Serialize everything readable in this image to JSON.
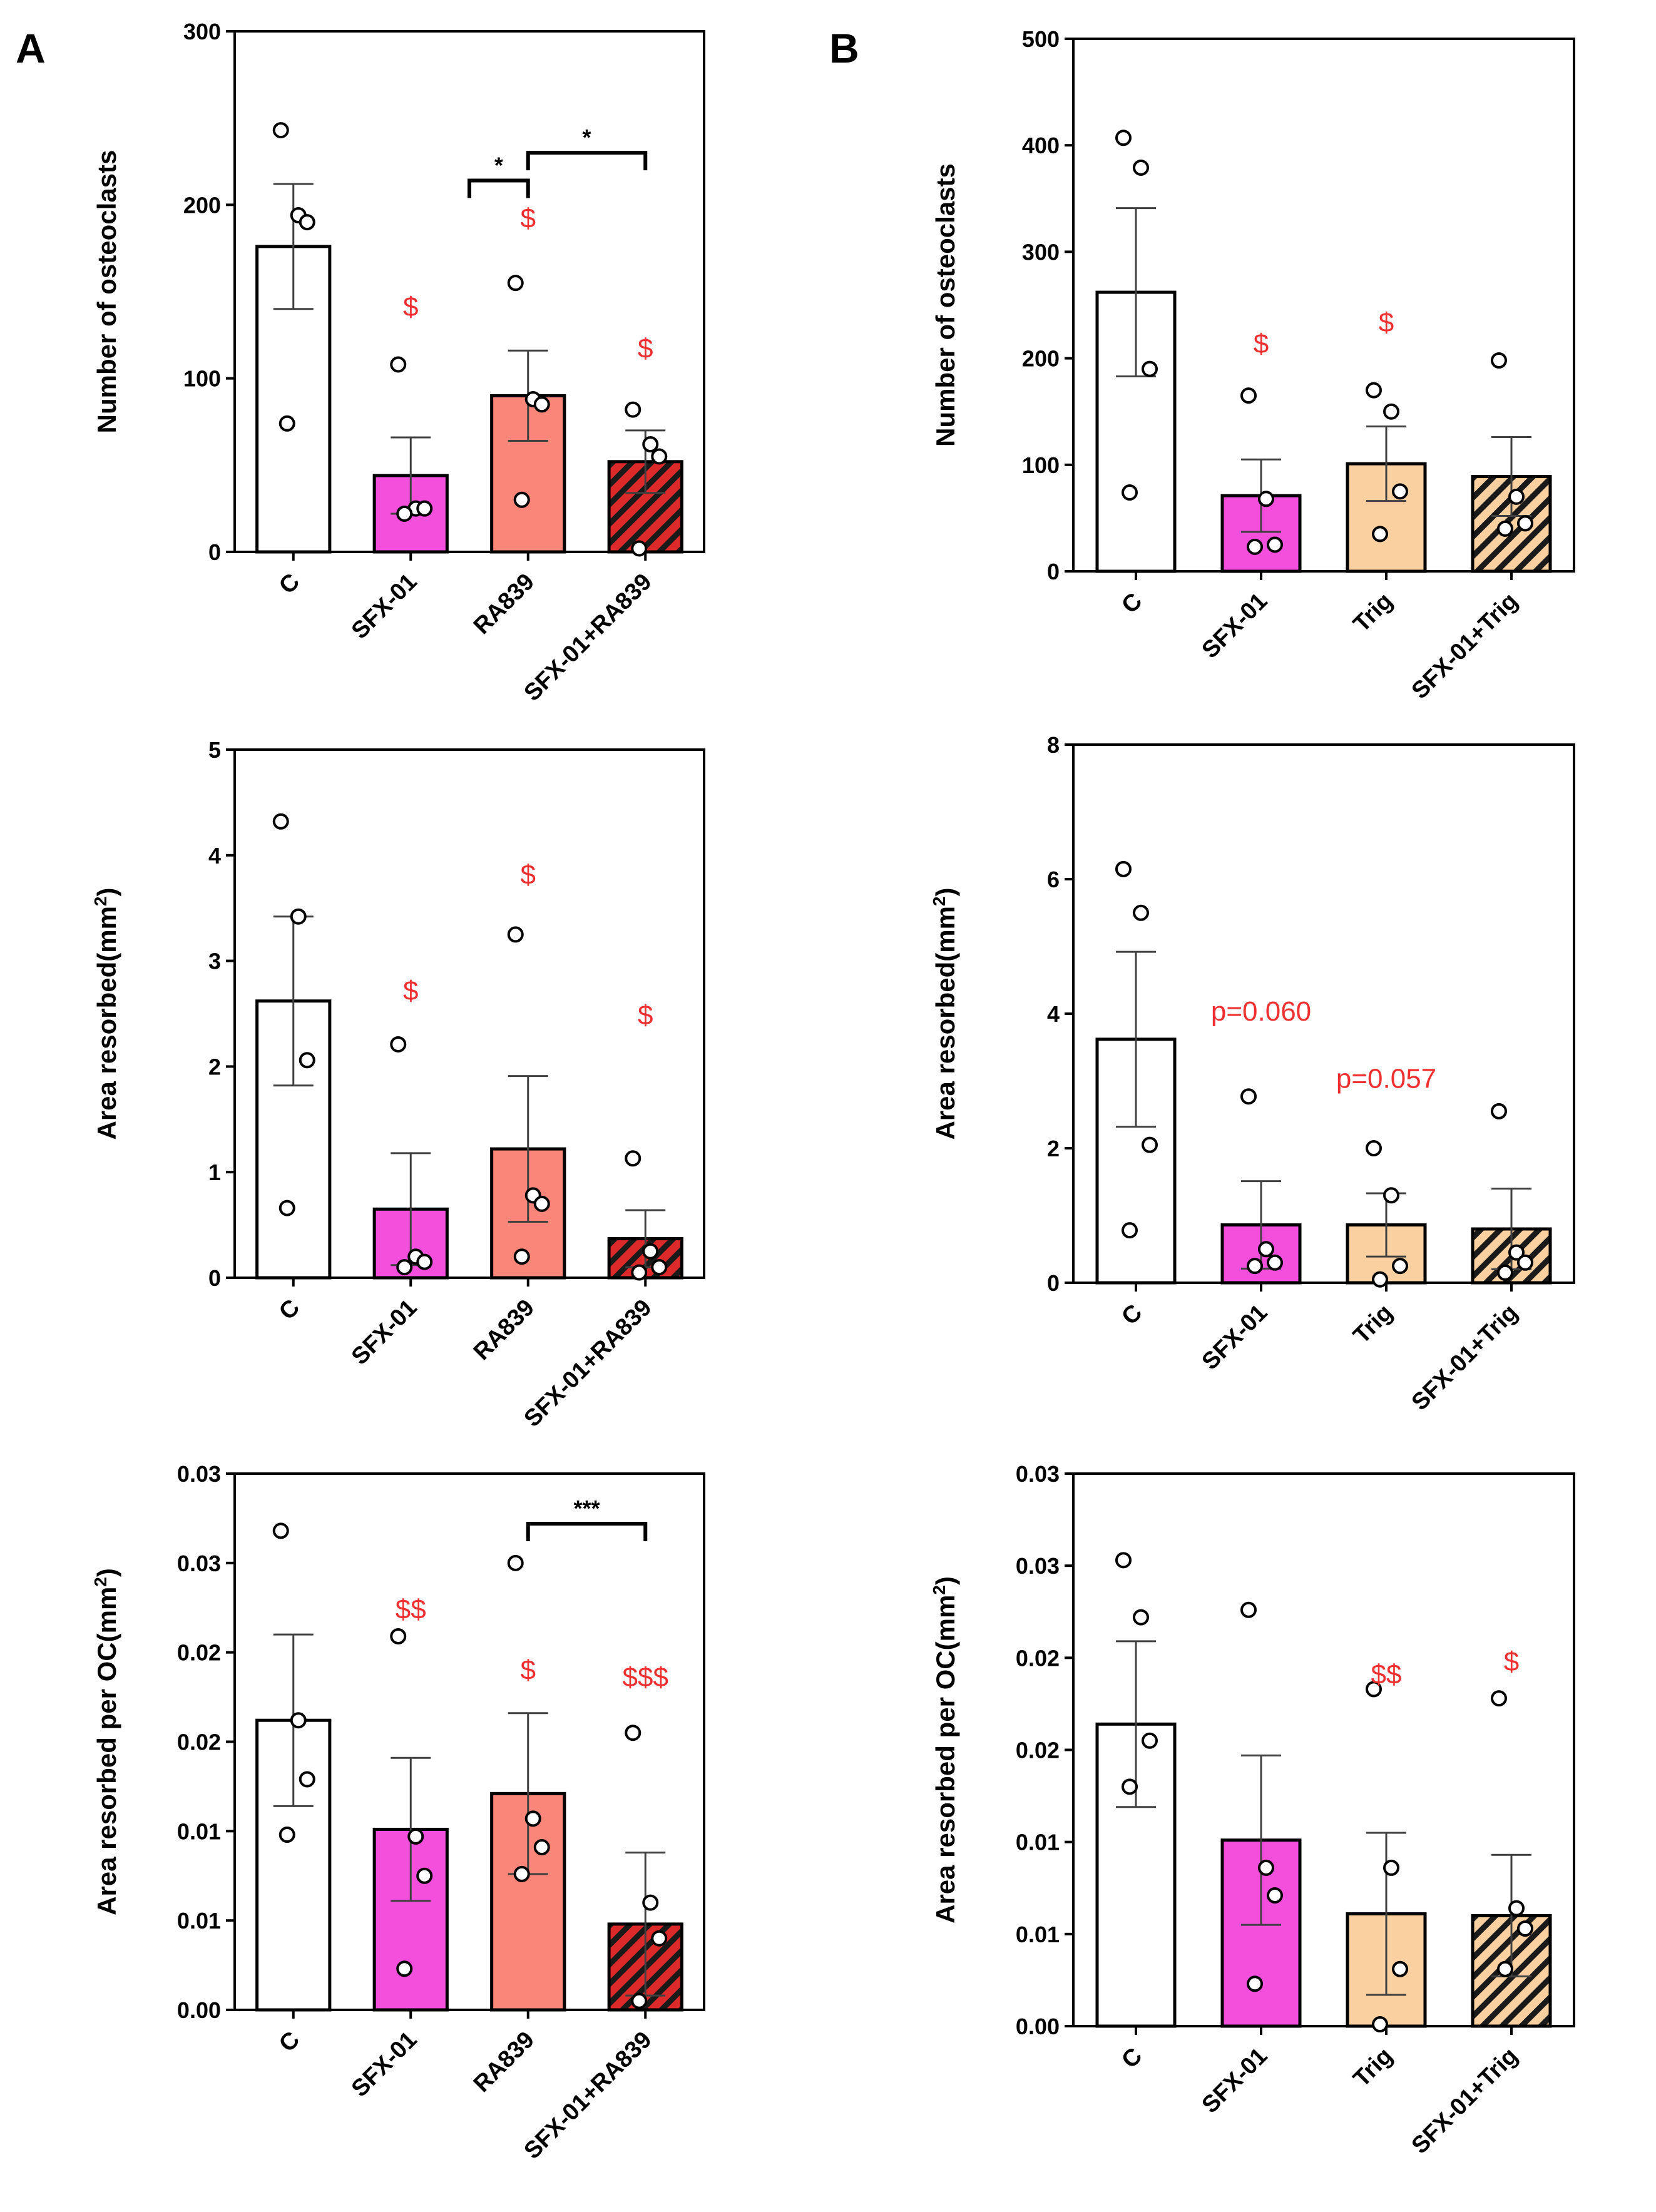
{
  "panel_labels": [
    "A",
    "B"
  ],
  "colors": {
    "control": "#ffffff",
    "sfx01": "#f34fdc",
    "ra839": "#fa8579",
    "ra839_combo": "#dc2a2a",
    "trig": "#fbd0a0",
    "trig_combo": "#fbd0a0",
    "significance_red": "#f03030",
    "axis": "#000000",
    "errorbar": "#404040"
  },
  "chart_data": [
    {
      "id": "A1",
      "type": "bar",
      "panel": "A",
      "ylabel": "Number of osteoclasts",
      "ylabel_sup": "",
      "ylim": [
        0,
        300
      ],
      "yticks": [
        0,
        100,
        200,
        300
      ],
      "ytick_labels": [
        "0",
        "100",
        "200",
        "300"
      ],
      "categories": [
        "C",
        "SFX-01",
        "RA839",
        "SFX-01+RA839"
      ],
      "values": [
        176,
        44,
        90,
        52
      ],
      "sem": [
        36,
        22,
        26,
        18
      ],
      "fills": [
        "#ffffff",
        "#f34fdc",
        "#fa8579",
        "#dc2a2a"
      ],
      "hatched": [
        false,
        false,
        false,
        true
      ],
      "points": [
        [
          243,
          194,
          190,
          74
        ],
        [
          108,
          25,
          25,
          22
        ],
        [
          155,
          88,
          85,
          30
        ],
        [
          82,
          62,
          55,
          2
        ]
      ],
      "red_marks": [
        {
          "index": 1,
          "text": "$",
          "y": 136
        },
        {
          "index": 2,
          "text": "$",
          "y": 187
        },
        {
          "index": 3,
          "text": "$",
          "y": 112
        }
      ],
      "brackets": [
        {
          "from": 1.5,
          "to": 2,
          "y": 214,
          "text": "*"
        },
        {
          "from": 2,
          "to": 3,
          "y": 230,
          "text": "*"
        }
      ],
      "notes": []
    },
    {
      "id": "B1",
      "type": "bar",
      "panel": "B",
      "ylabel": "Number of osteoclasts",
      "ylabel_sup": "",
      "ylim": [
        0,
        500
      ],
      "yticks": [
        0,
        100,
        200,
        300,
        400,
        500
      ],
      "ytick_labels": [
        "0",
        "100",
        "200",
        "300",
        "400",
        "500"
      ],
      "categories": [
        "C",
        "SFX-01",
        "Trig",
        "SFX-01+Trig"
      ],
      "values": [
        262,
        71,
        101,
        89
      ],
      "sem": [
        79,
        34,
        35,
        37
      ],
      "fills": [
        "#ffffff",
        "#f34fdc",
        "#fbd0a0",
        "#fbd0a0"
      ],
      "hatched": [
        false,
        false,
        false,
        true
      ],
      "points": [
        [
          407,
          379,
          190,
          74
        ],
        [
          165,
          68,
          25,
          23
        ],
        [
          170,
          150,
          75,
          35
        ],
        [
          198,
          70,
          45,
          40
        ]
      ],
      "red_marks": [
        {
          "index": 1,
          "text": "$",
          "y": 205
        },
        {
          "index": 2,
          "text": "$",
          "y": 225
        }
      ],
      "brackets": [],
      "notes": []
    },
    {
      "id": "A2",
      "type": "bar",
      "panel": "A",
      "ylabel": "Area resorbed(mm",
      "ylabel_sup": "2",
      "ylim": [
        0,
        5
      ],
      "yticks": [
        0,
        1,
        2,
        3,
        4,
        5
      ],
      "ytick_labels": [
        "0",
        "1",
        "2",
        "3",
        "4",
        "5"
      ],
      "categories": [
        "C",
        "SFX-01",
        "RA839",
        "SFX-01+RA839"
      ],
      "values": [
        2.62,
        0.65,
        1.22,
        0.37
      ],
      "sem": [
        0.8,
        0.53,
        0.69,
        0.27
      ],
      "fills": [
        "#ffffff",
        "#f34fdc",
        "#fa8579",
        "#dc2a2a"
      ],
      "hatched": [
        false,
        false,
        false,
        true
      ],
      "points": [
        [
          4.32,
          3.42,
          2.06,
          0.66
        ],
        [
          2.21,
          0.2,
          0.15,
          0.1
        ],
        [
          3.25,
          0.78,
          0.7,
          0.2
        ],
        [
          1.13,
          0.25,
          0.1,
          0.05
        ]
      ],
      "red_marks": [
        {
          "index": 1,
          "text": "$",
          "y": 2.63
        },
        {
          "index": 2,
          "text": "$",
          "y": 3.73
        },
        {
          "index": 3,
          "text": "$",
          "y": 2.4
        }
      ],
      "brackets": [],
      "notes": []
    },
    {
      "id": "B2",
      "type": "bar",
      "panel": "B",
      "ylabel": "Area resorbed(mm",
      "ylabel_sup": "2",
      "ylim": [
        0,
        8
      ],
      "yticks": [
        0,
        2,
        4,
        6,
        8
      ],
      "ytick_labels": [
        "0",
        "2",
        "4",
        "6",
        "8"
      ],
      "categories": [
        "C",
        "SFX-01",
        "Trig",
        "SFX-01+Trig"
      ],
      "values": [
        3.62,
        0.86,
        0.86,
        0.8
      ],
      "sem": [
        1.3,
        0.65,
        0.47,
        0.6
      ],
      "fills": [
        "#ffffff",
        "#f34fdc",
        "#fbd0a0",
        "#fbd0a0"
      ],
      "hatched": [
        false,
        false,
        false,
        true
      ],
      "points": [
        [
          6.15,
          5.5,
          2.05,
          0.78
        ],
        [
          2.77,
          0.5,
          0.3,
          0.25
        ],
        [
          2.0,
          1.3,
          0.25,
          0.05
        ],
        [
          2.55,
          0.45,
          0.3,
          0.15
        ]
      ],
      "red_marks": [],
      "brackets": [],
      "notes": [
        {
          "x": 1.5,
          "y": 3.9,
          "text": "p=0.060"
        },
        {
          "x": 2.5,
          "y": 2.9,
          "text": "p=0.057"
        }
      ]
    },
    {
      "id": "A3",
      "type": "bar",
      "panel": "A",
      "ylabel": "Area resorbed per OC(mm",
      "ylabel_sup": "2",
      "ylim": [
        0,
        0.03
      ],
      "yticks": [
        0,
        0.005,
        0.01,
        0.015,
        0.02,
        0.025,
        0.03
      ],
      "ytick_labels": [
        "0.00",
        "0.01",
        "0.01",
        "0.02",
        "0.02",
        "0.03",
        "0.03"
      ],
      "categories": [
        "C",
        "SFX-01",
        "RA839",
        "SFX-01+RA839"
      ],
      "values": [
        0.0162,
        0.0101,
        0.0121,
        0.0048
      ],
      "sem": [
        0.0048,
        0.004,
        0.0045,
        0.004
      ],
      "fills": [
        "#ffffff",
        "#f34fdc",
        "#fa8579",
        "#dc2a2a"
      ],
      "hatched": [
        false,
        false,
        false,
        true
      ],
      "points": [
        [
          0.0268,
          0.0162,
          0.0129,
          0.0098
        ],
        [
          0.0209,
          0.0097,
          0.0075,
          0.0023
        ],
        [
          0.025,
          0.0107,
          0.0091,
          0.0076
        ],
        [
          0.0155,
          0.006,
          0.004,
          0.0005
        ]
      ],
      "red_marks": [
        {
          "index": 1,
          "text": "$$",
          "y": 0.0219
        },
        {
          "index": 2,
          "text": "$",
          "y": 0.0185
        },
        {
          "index": 3,
          "text": "$$$",
          "y": 0.0181
        }
      ],
      "brackets": [
        {
          "from": 2,
          "to": 3,
          "y": 0.0272,
          "text": "***"
        }
      ],
      "notes": []
    },
    {
      "id": "B3",
      "type": "bar",
      "panel": "B",
      "ylabel": "Area resorbed per OC(mm",
      "ylabel_sup": "2",
      "ylim": [
        0,
        0.03
      ],
      "yticks": [
        0,
        0.005,
        0.01,
        0.015,
        0.02,
        0.025,
        0.03
      ],
      "ytick_labels": [
        "0.00",
        "0.01",
        "0.01",
        "0.02",
        "0.02",
        "0.03",
        "0.03"
      ],
      "categories": [
        "C",
        "SFX-01",
        "Trig",
        "SFX-01+Trig"
      ],
      "values": [
        0.0164,
        0.0101,
        0.0061,
        0.006
      ],
      "sem": [
        0.0045,
        0.0046,
        0.0044,
        0.0033
      ],
      "fills": [
        "#ffffff",
        "#f34fdc",
        "#fbd0a0",
        "#fbd0a0"
      ],
      "hatched": [
        false,
        false,
        false,
        true
      ],
      "points": [
        [
          0.0253,
          0.0222,
          0.0155,
          0.013
        ],
        [
          0.0226,
          0.0086,
          0.0071,
          0.0023
        ],
        [
          0.0183,
          0.0086,
          0.0031,
          0.0001
        ],
        [
          0.0178,
          0.0064,
          0.0053,
          0.0031
        ]
      ],
      "red_marks": [
        {
          "index": 2,
          "text": "$$",
          "y": 0.0186
        },
        {
          "index": 3,
          "text": "$",
          "y": 0.0193
        }
      ],
      "brackets": [],
      "notes": []
    }
  ]
}
